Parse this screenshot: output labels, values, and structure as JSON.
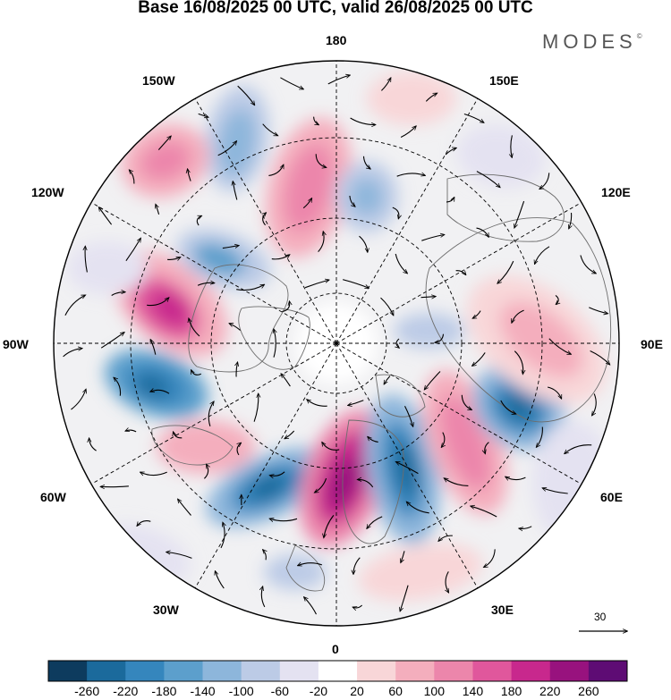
{
  "header": {
    "title": "Base 16/08/2025 00 UTC, valid 26/08/2025 00 UTC",
    "brand": "MODES",
    "brand_mark": "©"
  },
  "map": {
    "longitude_labels": {
      "deg180": "180",
      "w150": "150W",
      "e150": "150E",
      "w120": "120W",
      "e120": "120E",
      "w90": "90W",
      "e90": "90E",
      "w60": "60W",
      "e60": "60E",
      "w30": "30W",
      "e30": "30E",
      "deg0": "0"
    },
    "wind_reference_value": "30"
  },
  "colorbar": {
    "colors": [
      "#0d3b5e",
      "#1b6a9c",
      "#3586bd",
      "#5c9fcc",
      "#8db6db",
      "#bccbe6",
      "#e4e2f1",
      "#ffffff",
      "#f8d6d8",
      "#f4aebd",
      "#ec86ab",
      "#e0579c",
      "#c8288d",
      "#98127e",
      "#5e0c74"
    ],
    "labels": [
      "-260",
      "-220",
      "-180",
      "-140",
      "-100",
      "-60",
      "-20",
      "20",
      "60",
      "100",
      "140",
      "180",
      "220",
      "260"
    ]
  }
}
